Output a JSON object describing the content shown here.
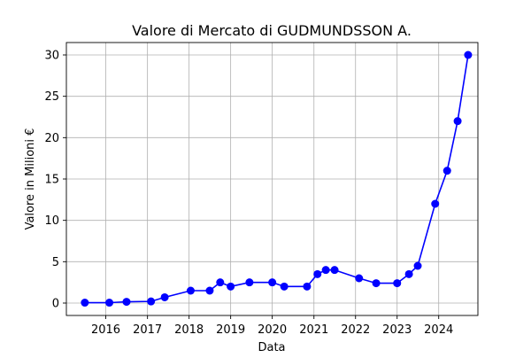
{
  "chart_data": {
    "type": "line",
    "title": "Valore di Mercato di GUDMUNDSSON A.",
    "xlabel": "Data",
    "ylabel": "Valore in Milioni €",
    "x_ticks": [
      "2016",
      "2017",
      "2018",
      "2019",
      "2020",
      "2021",
      "2022",
      "2023",
      "2024"
    ],
    "y_ticks": [
      0,
      5,
      10,
      15,
      20,
      25,
      30
    ],
    "xlim": [
      "2015-01-20",
      "2024-12-10"
    ],
    "ylim": [
      -1.5,
      31.5
    ],
    "grid": true,
    "series": [
      {
        "color": "#0000ff",
        "marker": "circle",
        "points": [
          {
            "x": "2015-07-01",
            "y": 0.05
          },
          {
            "x": "2016-02-01",
            "y": 0.05
          },
          {
            "x": "2016-07-01",
            "y": 0.15
          },
          {
            "x": "2017-02-01",
            "y": 0.2
          },
          {
            "x": "2017-06-01",
            "y": 0.7
          },
          {
            "x": "2018-01-15",
            "y": 1.5
          },
          {
            "x": "2018-07-01",
            "y": 1.5
          },
          {
            "x": "2018-10-01",
            "y": 2.5
          },
          {
            "x": "2019-01-01",
            "y": 2.0
          },
          {
            "x": "2019-06-15",
            "y": 2.5
          },
          {
            "x": "2020-01-01",
            "y": 2.5
          },
          {
            "x": "2020-04-15",
            "y": 2.0
          },
          {
            "x": "2020-11-01",
            "y": 2.0
          },
          {
            "x": "2021-02-01",
            "y": 3.5
          },
          {
            "x": "2021-04-15",
            "y": 4.0
          },
          {
            "x": "2021-07-01",
            "y": 4.0
          },
          {
            "x": "2022-02-01",
            "y": 3.0
          },
          {
            "x": "2022-07-01",
            "y": 2.4
          },
          {
            "x": "2023-01-01",
            "y": 2.4
          },
          {
            "x": "2023-04-15",
            "y": 3.5
          },
          {
            "x": "2023-07-01",
            "y": 4.5
          },
          {
            "x": "2023-12-01",
            "y": 12.0
          },
          {
            "x": "2024-03-15",
            "y": 16.0
          },
          {
            "x": "2024-06-15",
            "y": 22.0
          },
          {
            "x": "2024-09-15",
            "y": 30.0
          }
        ]
      }
    ]
  }
}
